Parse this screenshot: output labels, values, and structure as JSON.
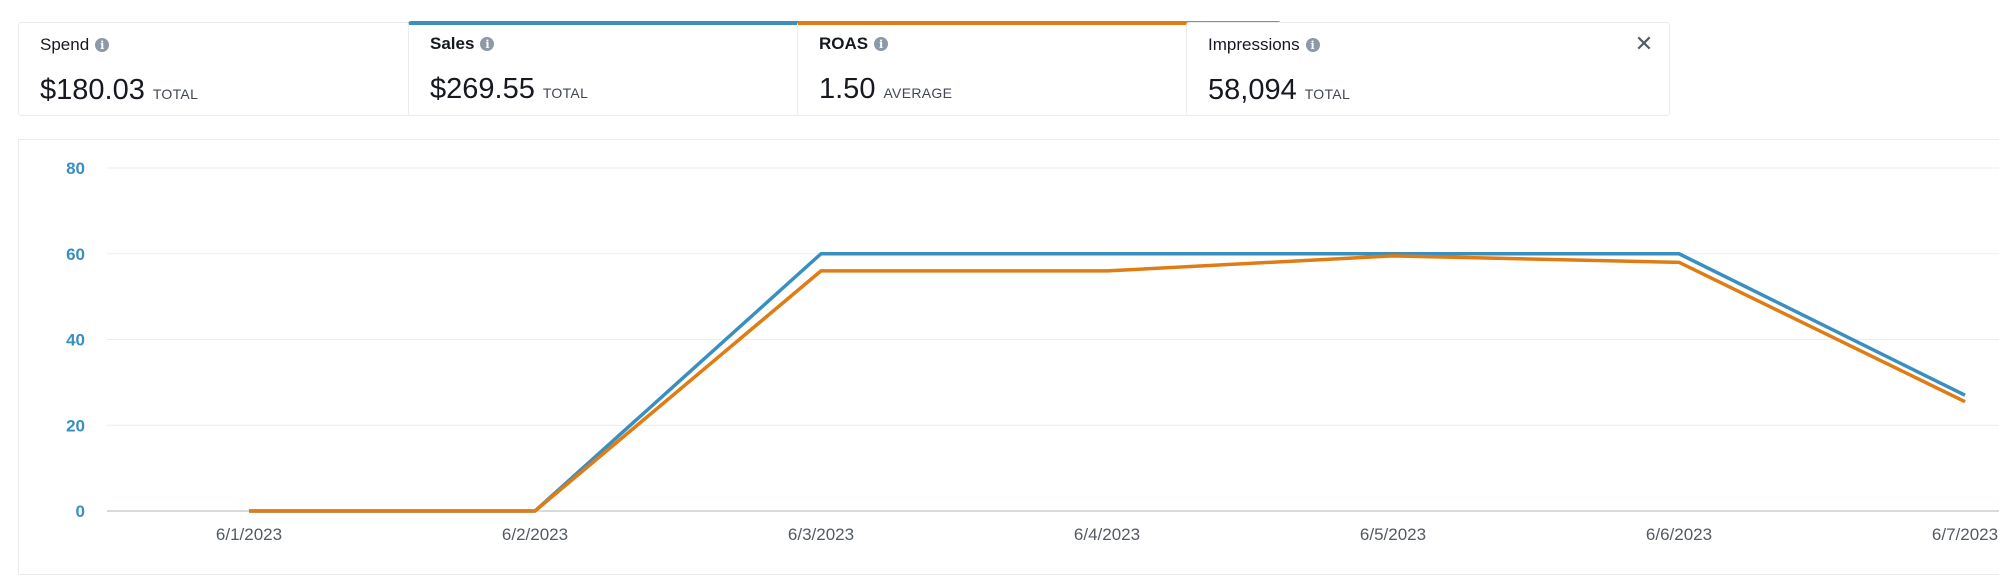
{
  "metric_cards": [
    {
      "name": "Spend",
      "value": "$180.03",
      "aggregation": "TOTAL",
      "selected": false,
      "accent_color": ""
    },
    {
      "name": "Sales",
      "value": "$269.55",
      "aggregation": "TOTAL",
      "selected": true,
      "accent_color": "#3a8fc1"
    },
    {
      "name": "ROAS",
      "value": "1.50",
      "aggregation": "AVERAGE",
      "selected": true,
      "accent_color": "#e07c14"
    },
    {
      "name": "Impressions",
      "value": "58,094",
      "aggregation": "TOTAL",
      "selected": false,
      "accent_color": ""
    }
  ],
  "icons": {
    "info": "info-icon",
    "close": "close-icon"
  },
  "close_glyph": "✕",
  "chart_data": {
    "type": "line",
    "categories": [
      "6/1/2023",
      "6/2/2023",
      "6/3/2023",
      "6/4/2023",
      "6/5/2023",
      "6/6/2023",
      "6/7/2023"
    ],
    "y_ticks": [
      "0",
      "20",
      "40",
      "60",
      "80"
    ],
    "ylim": [
      0,
      80
    ],
    "grid": true,
    "axis_color": "#3a8fc1",
    "series": [
      {
        "color": "#3a8fc1",
        "values": [
          0,
          0,
          60,
          60,
          60,
          60,
          27
        ]
      },
      {
        "color": "#e07c14",
        "values": [
          0,
          0,
          56,
          56,
          59.5,
          58,
          25.5
        ]
      }
    ]
  }
}
